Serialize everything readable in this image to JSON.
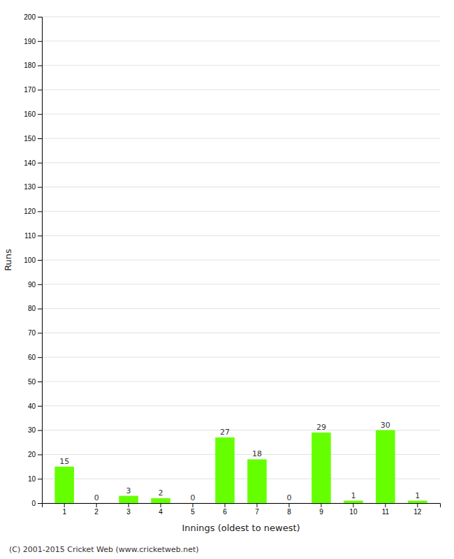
{
  "chart_data": {
    "type": "bar",
    "categories": [
      "1",
      "2",
      "3",
      "4",
      "5",
      "6",
      "7",
      "8",
      "9",
      "10",
      "11",
      "12"
    ],
    "values": [
      15,
      0,
      3,
      2,
      0,
      27,
      18,
      0,
      29,
      1,
      30,
      1
    ],
    "color": "#66ff00",
    "xlabel": "Innings (oldest to newest)",
    "ylabel": "Runs",
    "ylim": [
      0,
      200
    ],
    "yticks": [
      0,
      10,
      20,
      30,
      40,
      50,
      60,
      70,
      80,
      90,
      100,
      110,
      120,
      130,
      140,
      150,
      160,
      170,
      180,
      190,
      200
    ],
    "grid": true,
    "data_labels": true,
    "footer": "(C) 2001-2015 Cricket Web (www.cricketweb.net)"
  }
}
